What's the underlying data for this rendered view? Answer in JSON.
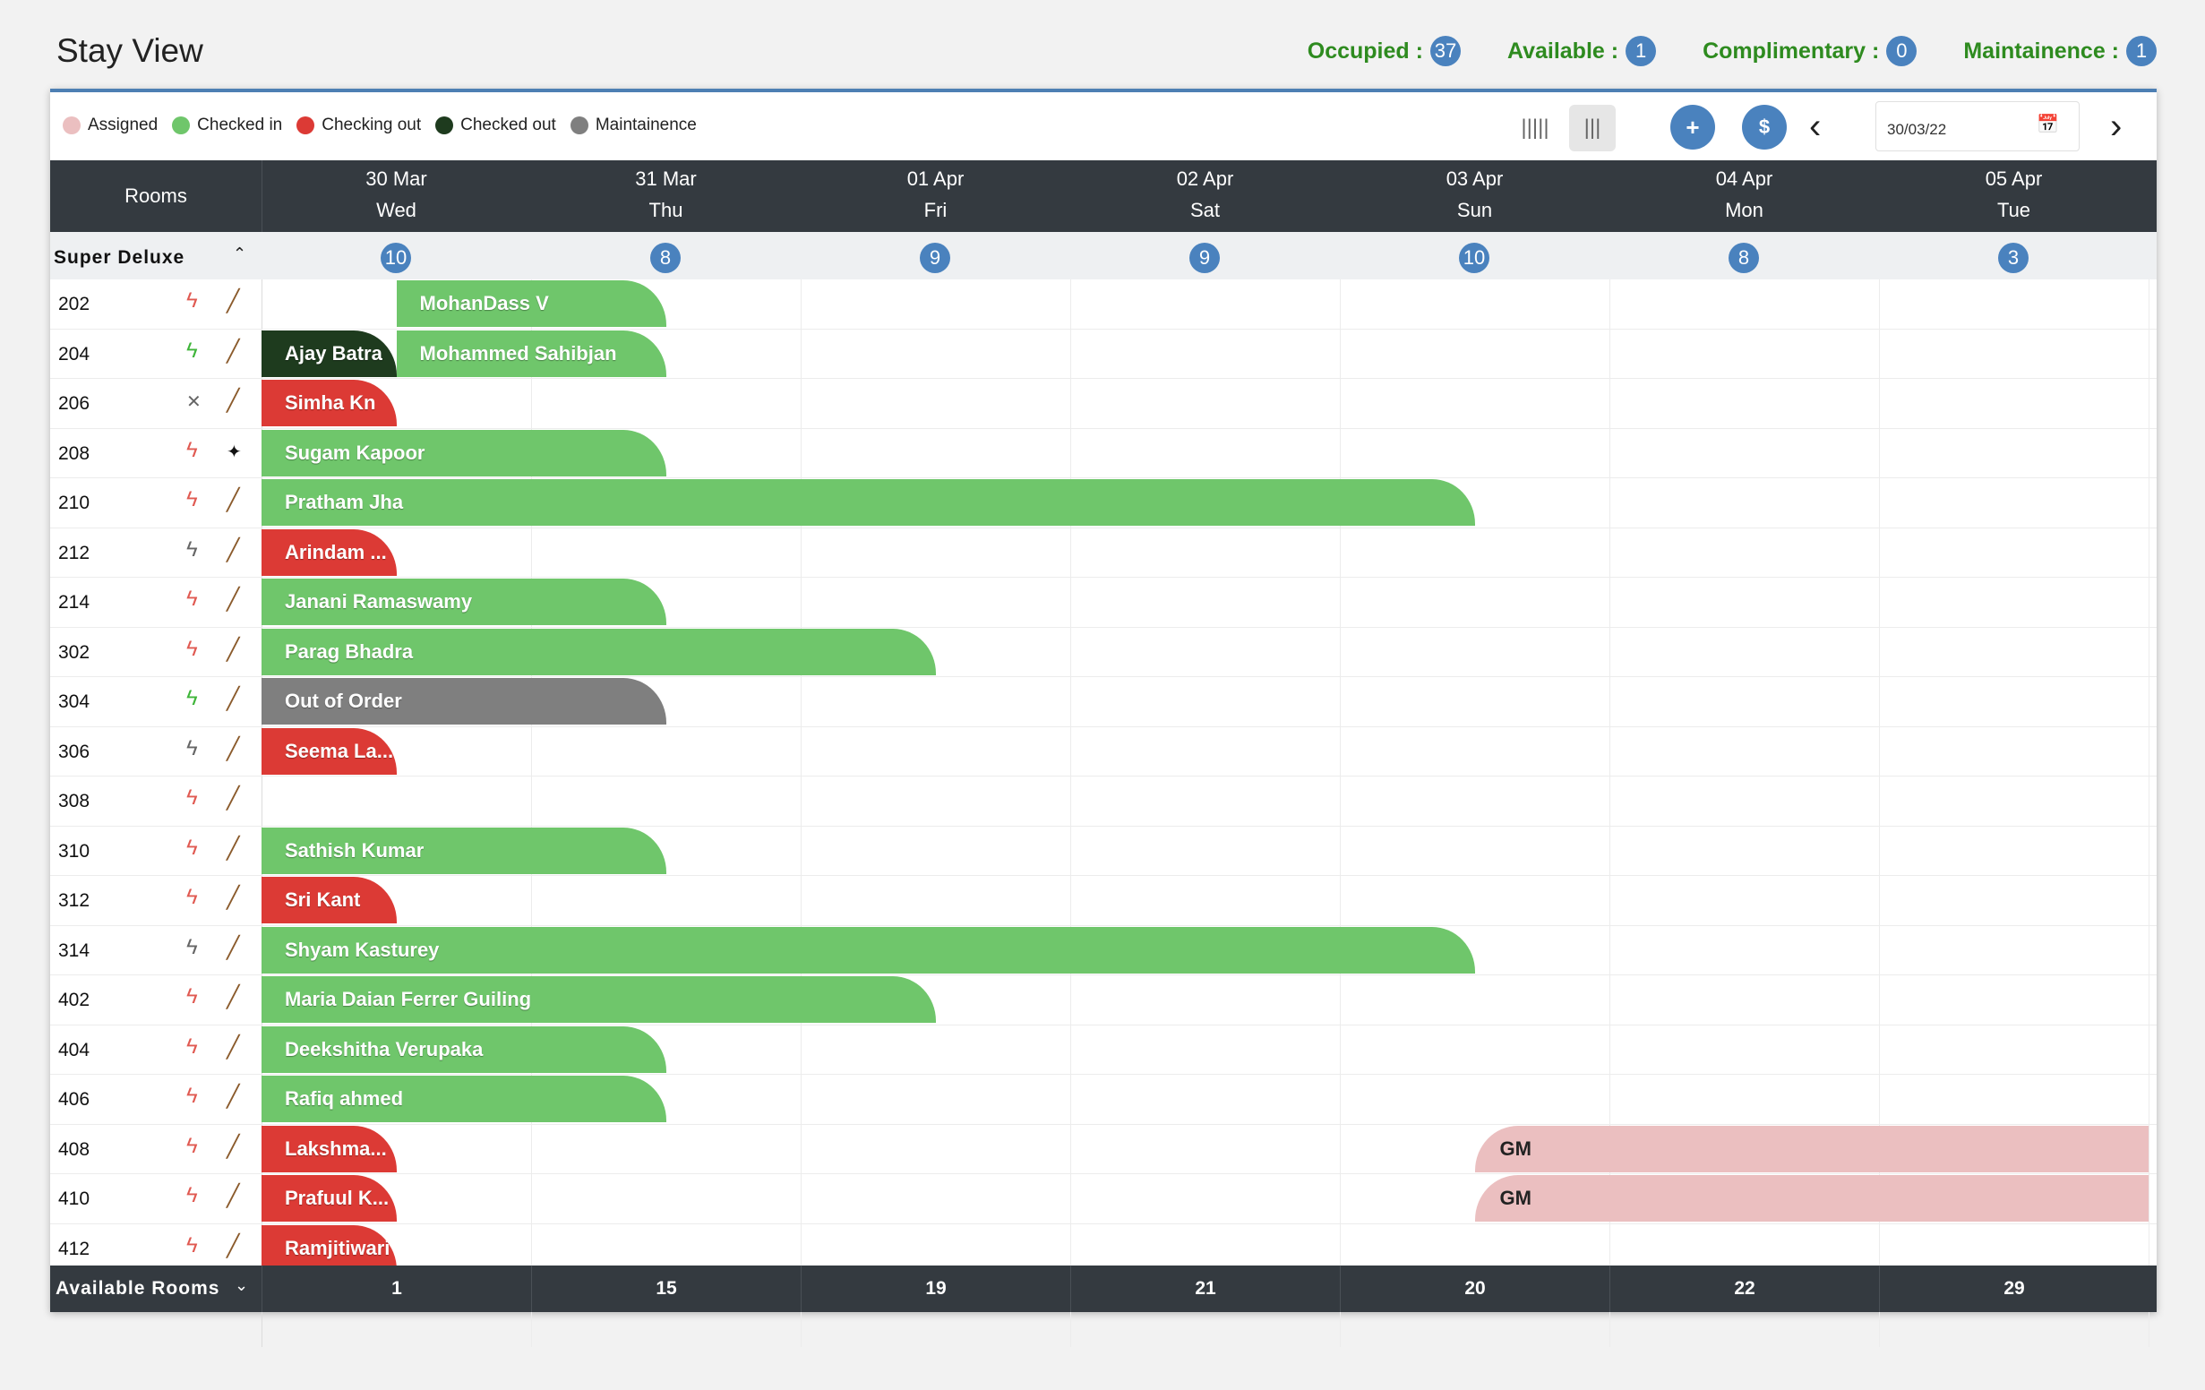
{
  "page_title": "Stay View",
  "stats": [
    {
      "label": "Occupied :",
      "value": "37"
    },
    {
      "label": "Available :",
      "value": "1"
    },
    {
      "label": "Complimentary :",
      "value": "0"
    },
    {
      "label": "Maintainence :",
      "value": "1"
    }
  ],
  "legend": [
    {
      "label": "Assigned",
      "color": "#ebbfc0"
    },
    {
      "label": "Checked in",
      "color": "#6fc66b"
    },
    {
      "label": "Checking out",
      "color": "#dc3a35"
    },
    {
      "label": "Checked out",
      "color": "#1e3b1e"
    },
    {
      "label": "Maintainence",
      "color": "#7f7f7f"
    }
  ],
  "toolbar": {
    "date_value": "30/03/22",
    "add_icon": "+",
    "payment_icon": "$"
  },
  "header": {
    "rooms_label": "Rooms",
    "days": [
      {
        "date": "30 Mar",
        "weekday": "Wed"
      },
      {
        "date": "31 Mar",
        "weekday": "Thu"
      },
      {
        "date": "01 Apr",
        "weekday": "Fri"
      },
      {
        "date": "02 Apr",
        "weekday": "Sat"
      },
      {
        "date": "03 Apr",
        "weekday": "Sun"
      },
      {
        "date": "04 Apr",
        "weekday": "Mon"
      },
      {
        "date": "05 Apr",
        "weekday": "Tue"
      }
    ]
  },
  "group": {
    "name": "Super Deluxe",
    "counts": [
      "10",
      "8",
      "9",
      "9",
      "10",
      "8",
      "3"
    ]
  },
  "colors": {
    "assigned": "#ebbfc0",
    "checked_in": "#6fc66b",
    "checking_out": "#dc3a35",
    "checked_out": "#1e3b1e",
    "maintainence": "#7f7f7f",
    "status_red": "#e05a52",
    "status_green": "#3fb53a",
    "status_gray": "#666666"
  },
  "rooms": [
    {
      "number": "202",
      "status": "red",
      "cleaning": "broom",
      "bookings": [
        {
          "guest": "MohanDass V",
          "type": "checked_in",
          "start": 0.5,
          "end": 1.5
        }
      ]
    },
    {
      "number": "204",
      "status": "green",
      "cleaning": "broom",
      "bookings": [
        {
          "guest": "Ajay Batra",
          "type": "checked_out",
          "start": 0,
          "end": 0.5
        },
        {
          "guest": "Mohammed Sahibjan",
          "type": "checked_in",
          "start": 0.5,
          "end": 1.5
        }
      ]
    },
    {
      "number": "206",
      "status": "cross",
      "cleaning": "broom",
      "bookings": [
        {
          "guest": "Simha Kn",
          "type": "checking_out",
          "start": 0,
          "end": 0.5
        }
      ]
    },
    {
      "number": "208",
      "status": "red",
      "cleaning": "sparkle",
      "bookings": [
        {
          "guest": "Sugam Kapoor",
          "type": "checked_in",
          "start": 0,
          "end": 1.5
        }
      ]
    },
    {
      "number": "210",
      "status": "red",
      "cleaning": "broom",
      "bookings": [
        {
          "guest": "Pratham Jha",
          "type": "checked_in",
          "start": 0,
          "end": 4.5
        }
      ]
    },
    {
      "number": "212",
      "status": "gray",
      "cleaning": "broom",
      "bookings": [
        {
          "guest": "Arindam ...",
          "type": "checking_out",
          "start": 0,
          "end": 0.5
        }
      ]
    },
    {
      "number": "214",
      "status": "red",
      "cleaning": "broom",
      "bookings": [
        {
          "guest": "Janani Ramaswamy",
          "type": "checked_in",
          "start": 0,
          "end": 1.5
        }
      ]
    },
    {
      "number": "302",
      "status": "red",
      "cleaning": "broom",
      "bookings": [
        {
          "guest": "Parag Bhadra",
          "type": "checked_in",
          "start": 0,
          "end": 2.5
        }
      ]
    },
    {
      "number": "304",
      "status": "green",
      "cleaning": "broom",
      "bookings": [
        {
          "guest": "Out of Order",
          "type": "maintainence",
          "start": 0,
          "end": 1.5
        }
      ]
    },
    {
      "number": "306",
      "status": "gray",
      "cleaning": "broom",
      "bookings": [
        {
          "guest": "Seema La...",
          "type": "checking_out",
          "start": 0,
          "end": 0.5
        }
      ]
    },
    {
      "number": "308",
      "status": "red",
      "cleaning": "broom",
      "bookings": []
    },
    {
      "number": "310",
      "status": "red",
      "cleaning": "broom",
      "bookings": [
        {
          "guest": "Sathish Kumar",
          "type": "checked_in",
          "start": 0,
          "end": 1.5
        }
      ]
    },
    {
      "number": "312",
      "status": "red",
      "cleaning": "broom",
      "bookings": [
        {
          "guest": "Sri Kant",
          "type": "checking_out",
          "start": 0,
          "end": 0.5
        }
      ]
    },
    {
      "number": "314",
      "status": "gray",
      "cleaning": "broom",
      "bookings": [
        {
          "guest": "Shyam Kasturey",
          "type": "checked_in",
          "start": 0,
          "end": 4.5
        }
      ]
    },
    {
      "number": "402",
      "status": "red",
      "cleaning": "broom",
      "bookings": [
        {
          "guest": "Maria Daian Ferrer Guiling",
          "type": "checked_in",
          "start": 0,
          "end": 2.5
        }
      ]
    },
    {
      "number": "404",
      "status": "red",
      "cleaning": "broom",
      "bookings": [
        {
          "guest": "Deekshitha Verupaka",
          "type": "checked_in",
          "start": 0,
          "end": 1.5
        }
      ]
    },
    {
      "number": "406",
      "status": "red",
      "cleaning": "broom",
      "bookings": [
        {
          "guest": "Rafiq ahmed",
          "type": "checked_in",
          "start": 0,
          "end": 1.5
        }
      ]
    },
    {
      "number": "408",
      "status": "red",
      "cleaning": "broom",
      "bookings": [
        {
          "guest": "Lakshma...",
          "type": "checking_out",
          "start": 0,
          "end": 0.5
        },
        {
          "guest": "GM",
          "type": "assigned",
          "start": 4.5,
          "end": 7
        }
      ]
    },
    {
      "number": "410",
      "status": "red",
      "cleaning": "broom",
      "bookings": [
        {
          "guest": "Prafuul K...",
          "type": "checking_out",
          "start": 0,
          "end": 0.5
        },
        {
          "guest": "GM",
          "type": "assigned",
          "start": 4.5,
          "end": 7
        }
      ]
    },
    {
      "number": "412",
      "status": "red",
      "cleaning": "broom",
      "bookings": [
        {
          "guest": "Ramjitiwari",
          "type": "checking_out",
          "start": 0,
          "end": 0.5
        }
      ]
    }
  ],
  "footer": {
    "label": "Available Rooms",
    "values": [
      "1",
      "15",
      "19",
      "21",
      "20",
      "22",
      "29"
    ]
  }
}
